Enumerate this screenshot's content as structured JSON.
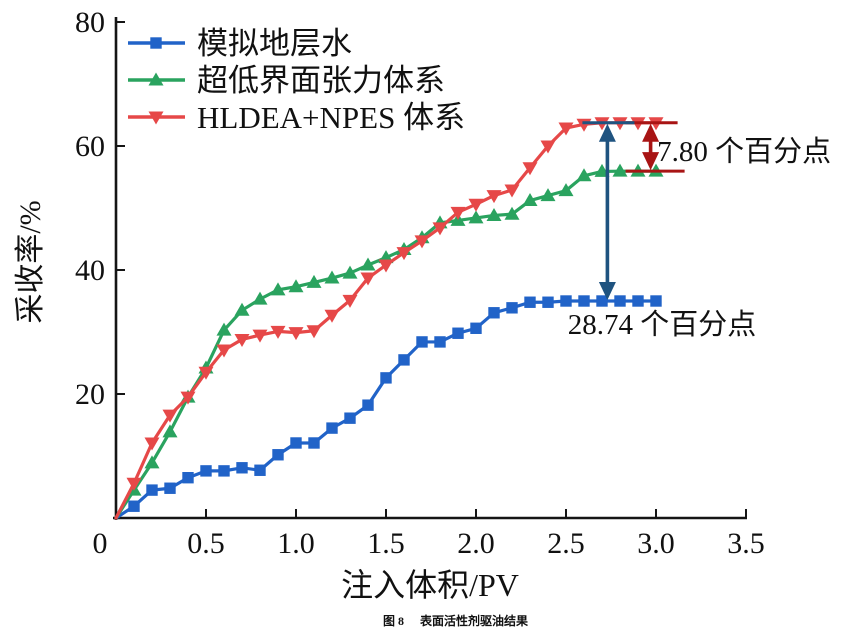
{
  "figure": {
    "caption_label": "图 8",
    "caption_text": "表面活性剂驱油结果"
  },
  "chart_data": {
    "type": "line",
    "title": "",
    "xlabel": "注入体积/PV",
    "ylabel": "采收率/%",
    "xlim": [
      0,
      3.5
    ],
    "ylim": [
      0,
      80
    ],
    "x_ticks": [
      0,
      0.5,
      1.0,
      1.5,
      2.0,
      2.5,
      3.0,
      3.5
    ],
    "x_tick_labels": [
      "0",
      "0.5",
      "1.0",
      "1.5",
      "2.0",
      "2.5",
      "3.0",
      "3.5"
    ],
    "y_ticks": [
      20,
      40,
      60,
      80
    ],
    "y_tick_labels": [
      "20",
      "40",
      "60",
      "80"
    ],
    "grid": false,
    "legend_position": "top-left",
    "x": [
      0,
      0.1,
      0.2,
      0.3,
      0.4,
      0.5,
      0.6,
      0.7,
      0.8,
      0.9,
      1.0,
      1.1,
      1.2,
      1.3,
      1.4,
      1.5,
      1.6,
      1.7,
      1.8,
      1.9,
      2.0,
      2.1,
      2.2,
      2.3,
      2.4,
      2.5,
      2.6,
      2.7,
      2.8,
      2.9,
      3.0
    ],
    "series": [
      {
        "name": "模拟地层水",
        "marker": "square",
        "color": "#2163c8",
        "final_value": 35.0,
        "y": [
          0,
          1.9,
          4.5,
          4.8,
          6.5,
          7.6,
          7.6,
          8.1,
          7.7,
          10.2,
          12.1,
          12.1,
          14.5,
          16.1,
          18.2,
          22.6,
          25.5,
          28.4,
          28.4,
          29.8,
          30.6,
          33.1,
          33.9,
          34.8,
          34.8,
          35.0,
          35.0,
          35.0,
          35.0,
          35.0,
          35.0
        ]
      },
      {
        "name": "超低界面张力体系",
        "marker": "triangle-up",
        "color": "#2aa35f",
        "final_value": 55.94,
        "y": [
          0,
          4.5,
          8.9,
          13.9,
          19.5,
          24.2,
          30.3,
          33.5,
          35.3,
          36.8,
          37.3,
          38.0,
          38.7,
          39.5,
          40.8,
          42.0,
          43.3,
          45.2,
          47.6,
          48.0,
          48.4,
          48.8,
          49.0,
          51.2,
          52.0,
          52.8,
          55.2,
          55.9,
          55.94,
          55.94,
          55.94
        ]
      },
      {
        "name": "HLDEA+NPES 体系",
        "marker": "triangle-down",
        "color": "#e64848",
        "final_value": 63.74,
        "y": [
          0,
          5.6,
          12.1,
          16.6,
          19.5,
          23.5,
          27.1,
          28.8,
          29.5,
          30.1,
          29.9,
          30.2,
          32.7,
          35.1,
          38.7,
          40.8,
          42.8,
          44.7,
          46.8,
          49.3,
          50.6,
          52.0,
          52.9,
          56.5,
          60.0,
          62.9,
          63.5,
          63.74,
          63.74,
          63.74,
          63.74
        ]
      }
    ],
    "annotations": [
      {
        "text": "7.80 个百分点",
        "color": "#a81414",
        "x_pv": 2.97,
        "top_pct": 63.74,
        "bottom_pct": 55.94,
        "caps": [
          "top",
          "bottom"
        ],
        "label_x_pv": 3.006,
        "label_pct": 57.6
      },
      {
        "text": "28.74 个百分点",
        "color": "#1f5380",
        "x_pv": 2.73,
        "top_pct": 63.74,
        "bottom_pct": 35.0,
        "caps": [
          "top"
        ],
        "label_x_pv": 2.51,
        "label_pct": 29.7
      }
    ]
  }
}
